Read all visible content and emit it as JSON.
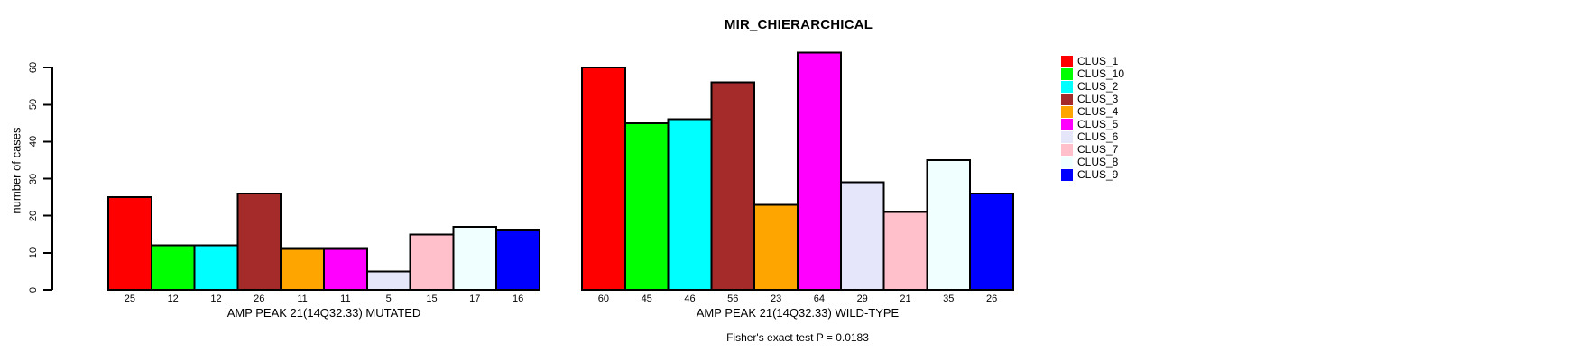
{
  "chart_data": {
    "type": "bar",
    "title": "MIR_CHIERARCHICAL",
    "ylabel": "number of cases",
    "ylim": [
      0,
      64
    ],
    "yticks": [
      0,
      10,
      20,
      30,
      40,
      50,
      60
    ],
    "grid": false,
    "legend_position": "right",
    "categories": [
      "CLUS_1",
      "CLUS_10",
      "CLUS_2",
      "CLUS_3",
      "CLUS_4",
      "CLUS_5",
      "CLUS_6",
      "CLUS_7",
      "CLUS_8",
      "CLUS_9"
    ],
    "colors": [
      "#FF0000",
      "#00FF00",
      "#00FFFF",
      "#A52A2A",
      "#FFA500",
      "#FF00FF",
      "#E6E6FA",
      "#FFC0CB",
      "#F0FFFF",
      "#0000FF"
    ],
    "series": [
      {
        "name": "AMP PEAK 21(14Q32.33) MUTATED",
        "values": [
          25,
          12,
          12,
          26,
          11,
          11,
          5,
          15,
          17,
          16
        ]
      },
      {
        "name": "AMP PEAK 21(14Q32.33) WILD-TYPE",
        "values": [
          60,
          45,
          46,
          56,
          23,
          64,
          29,
          21,
          35,
          26
        ]
      }
    ],
    "bar_value_labels_shown": true,
    "annotation": "Fisher's exact test P = 0.0183",
    "bar_border_color": "#000000",
    "background_color": "#FFFFFF"
  }
}
